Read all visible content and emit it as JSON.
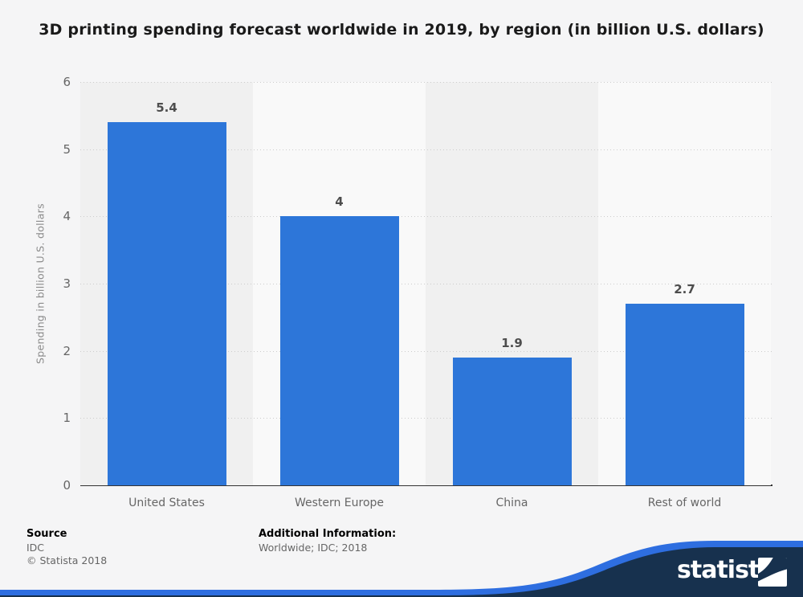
{
  "title": "3D printing spending forecast worldwide in 2019, by region (in billion U.S. dollars)",
  "chart_data": {
    "type": "bar",
    "categories": [
      "United States",
      "Western Europe",
      "China",
      "Rest of world"
    ],
    "values": [
      5.4,
      4,
      1.9,
      2.7
    ],
    "value_labels": [
      "5.4",
      "4",
      "1.9",
      "2.7"
    ],
    "title": "3D printing spending forecast worldwide in 2019, by region (in billion U.S. dollars)",
    "xlabel": "",
    "ylabel": "Spending in billion U.S. dollars",
    "ylim": [
      0,
      6
    ],
    "yticks": [
      0,
      1,
      2,
      3,
      4,
      5,
      6
    ],
    "grid": "horizontal-dotted",
    "legend": "none",
    "bar_color": "#2d76d9"
  },
  "footer": {
    "source_label": "Source",
    "source_value": "IDC",
    "copyright": "© Statista 2018",
    "additional_label": "Additional Information:",
    "additional_value": "Worldwide; IDC; 2018"
  },
  "branding": {
    "logo_text": "statista",
    "logo_icon": "statista-wave-icon"
  },
  "colors": {
    "bar": "#2d76d9",
    "band_dark": "#f0f0f0",
    "band_light": "#f9f9f9",
    "page_bg": "#f5f5f6",
    "gridline": "#cccccc",
    "axis_line": "#333333",
    "tick_text": "#666666",
    "value_text": "#4d4d4d",
    "title_text": "#1a1a1a",
    "footer_navy": "#17314e",
    "footer_blue": "#2e6ee0",
    "logo_white": "#ffffff"
  }
}
